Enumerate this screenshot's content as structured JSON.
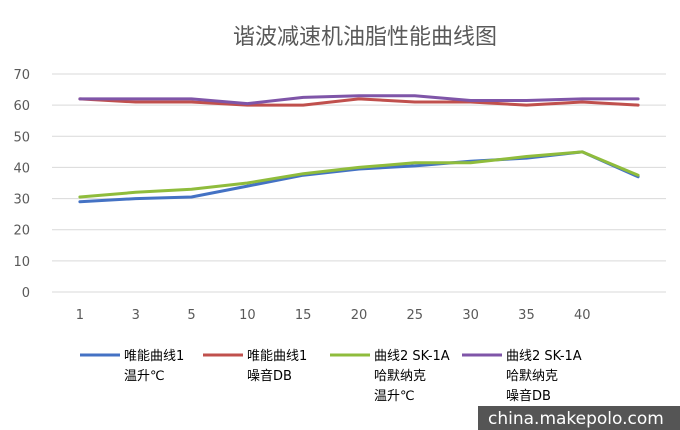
{
  "chart_data": {
    "type": "line",
    "title": "谐波减速机油脂性能曲线图",
    "categories": [
      "1",
      "3",
      "5",
      "10",
      "15",
      "20",
      "25",
      "30",
      "35",
      "40",
      ""
    ],
    "ylim": [
      0,
      70
    ],
    "yticks": [
      "0",
      "10",
      "20",
      "30",
      "40",
      "50",
      "60",
      "70"
    ],
    "grid": true,
    "legend_position": "bottom",
    "series": [
      {
        "name_lines": [
          "唯能曲线1",
          "温升℃"
        ],
        "color": "#4472c4",
        "values": [
          29,
          30,
          30.5,
          34,
          37.5,
          39.5,
          40.5,
          42,
          43,
          45,
          37
        ]
      },
      {
        "name_lines": [
          "唯能曲线1",
          "噪音DB"
        ],
        "color": "#c0504d",
        "values": [
          62,
          61,
          61,
          60,
          60,
          62,
          61,
          61,
          60,
          61,
          60
        ]
      },
      {
        "name_lines": [
          "曲线2 SK-1A",
          "哈默纳克",
          "温升℃"
        ],
        "color": "#8fbc3c",
        "values": [
          30.5,
          32,
          33,
          35,
          38,
          40,
          41.5,
          41.5,
          43.5,
          45,
          37.5
        ]
      },
      {
        "name_lines": [
          "曲线2 SK-1A",
          "哈默纳克",
          "噪音DB"
        ],
        "color": "#7f55a8",
        "values": [
          62,
          62,
          62,
          60.5,
          62.5,
          63,
          63,
          61.5,
          61.5,
          62,
          62
        ]
      }
    ]
  },
  "watermark": "china.makepolo.com",
  "watermark_bg": "#555555"
}
